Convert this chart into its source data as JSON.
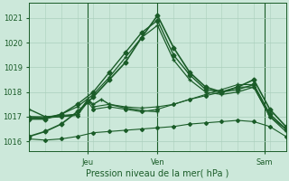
{
  "bg_color": "#cce8da",
  "grid_color": "#aacfbc",
  "line_color": "#1a5c28",
  "title": "Pression niveau de la mer( hPa )",
  "ylabel_ticks": [
    1016,
    1017,
    1018,
    1019,
    1020,
    1021
  ],
  "xlim": [
    0,
    96
  ],
  "ylim": [
    1015.6,
    1021.6
  ],
  "xtick_positions": [
    22,
    48,
    88
  ],
  "xtick_labels": [
    "Jeu",
    "Ven",
    "Sam"
  ],
  "day_lines_major": [
    22,
    48,
    88
  ],
  "series": [
    {
      "x": [
        0,
        6,
        12,
        18,
        24,
        30,
        36,
        42,
        48,
        54,
        60,
        66,
        72,
        78,
        84,
        90,
        96
      ],
      "y": [
        1016.2,
        1016.4,
        1016.7,
        1017.2,
        1017.8,
        1018.5,
        1019.2,
        1020.2,
        1021.1,
        1019.8,
        1018.8,
        1018.2,
        1018.0,
        1018.2,
        1018.5,
        1017.3,
        1016.6
      ],
      "marker": "D",
      "markersize": 2.5,
      "linewidth": 1.2,
      "zorder": 4
    },
    {
      "x": [
        0,
        6,
        12,
        18,
        24,
        30,
        36,
        42,
        48,
        54,
        60,
        66,
        72,
        78,
        84,
        90,
        96
      ],
      "y": [
        1016.9,
        1016.9,
        1017.1,
        1017.5,
        1018.0,
        1018.8,
        1019.6,
        1020.4,
        1020.9,
        1019.5,
        1018.7,
        1018.1,
        1018.0,
        1018.1,
        1018.3,
        1017.1,
        1016.5
      ],
      "marker": "D",
      "markersize": 2.5,
      "linewidth": 1.0,
      "zorder": 4
    },
    {
      "x": [
        0,
        6,
        12,
        18,
        24,
        30,
        36,
        42,
        48,
        54,
        60,
        66,
        72,
        78,
        84,
        90,
        96
      ],
      "y": [
        1016.95,
        1016.95,
        1017.1,
        1017.4,
        1017.9,
        1018.6,
        1019.4,
        1020.2,
        1020.7,
        1019.3,
        1018.5,
        1018.0,
        1017.9,
        1018.0,
        1018.2,
        1017.0,
        1016.4
      ],
      "marker": "+",
      "markersize": 3.5,
      "linewidth": 0.9,
      "zorder": 4
    },
    {
      "x": [
        0,
        6,
        12,
        18,
        22,
        24,
        30,
        36,
        42,
        48,
        54,
        60,
        66,
        72,
        78,
        84,
        90,
        96
      ],
      "y": [
        1017.0,
        1017.0,
        1017.05,
        1017.1,
        1017.7,
        1017.4,
        1017.5,
        1017.4,
        1017.35,
        1017.4,
        1017.5,
        1017.7,
        1017.9,
        1018.1,
        1018.3,
        1018.3,
        1017.1,
        1016.5
      ],
      "marker": "+",
      "markersize": 3,
      "linewidth": 0.8,
      "zorder": 3
    },
    {
      "x": [
        0,
        6,
        12,
        18,
        22,
        24,
        30,
        36,
        42,
        48,
        54,
        60,
        66,
        72,
        78,
        84,
        90,
        96
      ],
      "y": [
        1017.0,
        1016.95,
        1017.0,
        1017.05,
        1017.6,
        1017.3,
        1017.4,
        1017.3,
        1017.2,
        1017.3,
        1017.5,
        1017.7,
        1017.85,
        1018.0,
        1018.2,
        1018.2,
        1017.0,
        1016.5
      ],
      "marker": "D",
      "markersize": 2,
      "linewidth": 0.8,
      "zorder": 3
    },
    {
      "x": [
        0,
        6,
        12,
        18,
        24,
        30,
        36,
        42,
        48,
        54,
        60,
        66,
        72,
        78,
        84,
        90,
        96
      ],
      "y": [
        1016.1,
        1016.05,
        1016.1,
        1016.2,
        1016.35,
        1016.4,
        1016.45,
        1016.5,
        1016.55,
        1016.6,
        1016.7,
        1016.75,
        1016.8,
        1016.85,
        1016.8,
        1016.6,
        1016.2
      ],
      "marker": "D",
      "markersize": 2,
      "linewidth": 0.8,
      "zorder": 3
    },
    {
      "x": [
        0,
        6,
        12,
        18,
        22,
        24,
        27,
        30,
        36,
        42,
        48
      ],
      "y": [
        1017.3,
        1017.0,
        1017.0,
        1017.1,
        1017.7,
        1017.5,
        1017.7,
        1017.5,
        1017.35,
        1017.25,
        1017.2
      ],
      "marker": "+",
      "markersize": 3.5,
      "linewidth": 1.0,
      "zorder": 4
    }
  ]
}
